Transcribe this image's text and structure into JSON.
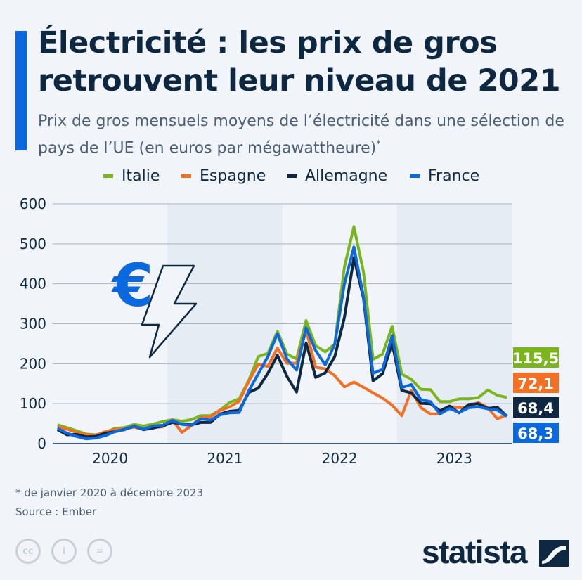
{
  "title": "Électricité : les prix de gros retrouvent leur niveau de 2021",
  "subtitle": "Prix de gros mensuels moyens de l’électricité dans une sélection de pays de l’UE (en euros par mégawattheure)",
  "subtitle_mark": "*",
  "footnote": "* de janvier 2020 à décembre 2023",
  "source": "Source : Ember",
  "brand": "statista",
  "license_icons": [
    "cc-icon",
    "by-icon",
    "nd-icon"
  ],
  "illustration_icons": [
    "euro-icon",
    "lightning-icon"
  ],
  "chart_data": {
    "type": "line",
    "title": "",
    "xlabel": "",
    "ylabel": "",
    "ylim": [
      0,
      600
    ],
    "yticks": [
      "0",
      "100",
      "200",
      "300",
      "400",
      "500",
      "600"
    ],
    "xtick_labels": [
      "2020",
      "2021",
      "2022",
      "2023"
    ],
    "x_start": "2020-01",
    "x_end": "2023-12",
    "x_frequency": "monthly",
    "grid": true,
    "legend_position": "top",
    "shaded_years": [
      "2021",
      "2023"
    ],
    "series": [
      {
        "name": "Italie",
        "color": "#7ab51d",
        "end_label": "115,5",
        "values": [
          47,
          40,
          32,
          24,
          22,
          28,
          38,
          40,
          48,
          44,
          49,
          55,
          60,
          56,
          60,
          70,
          70,
          84,
          103,
          112,
          158,
          218,
          226,
          281,
          224,
          212,
          308,
          245,
          230,
          249,
          441,
          543,
          430,
          211,
          224,
          294,
          174,
          161,
          136,
          135,
          105,
          105,
          112,
          112,
          115,
          134,
          121,
          115.5
        ]
      },
      {
        "name": "Espagne",
        "color": "#f26f23",
        "end_label": "72,1",
        "values": [
          41,
          36,
          28,
          22,
          21,
          30,
          35,
          37,
          41,
          36,
          41,
          42,
          60,
          28,
          45,
          65,
          67,
          83,
          92,
          106,
          156,
          199,
          193,
          239,
          201,
          201,
          284,
          191,
          187,
          170,
          142,
          154,
          141,
          127,
          114,
          96,
          70,
          133,
          90,
          74,
          74,
          93,
          90,
          91,
          103,
          90,
          62,
          72.1
        ]
      },
      {
        "name": "Allemagne",
        "color": "#0e2841",
        "end_label": "68,4",
        "values": [
          35,
          22,
          23,
          17,
          18,
          26,
          30,
          35,
          44,
          35,
          39,
          44,
          53,
          49,
          47,
          53,
          53,
          74,
          81,
          83,
          128,
          139,
          176,
          221,
          168,
          129,
          252,
          166,
          177,
          218,
          315,
          465,
          364,
          157,
          175,
          252,
          133,
          127,
          101,
          100,
          82,
          94,
          77,
          98,
          100,
          88,
          91,
          68.4
        ]
      },
      {
        "name": "France",
        "color": "#0b68dd",
        "end_label": "68,3",
        "values": [
          38,
          26,
          18,
          12,
          14,
          20,
          30,
          36,
          44,
          36,
          44,
          46,
          58,
          48,
          46,
          62,
          59,
          72,
          77,
          78,
          132,
          175,
          218,
          275,
          212,
          184,
          290,
          233,
          197,
          249,
          399,
          492,
          368,
          176,
          186,
          271,
          140,
          148,
          110,
          105,
          74,
          88,
          78,
          90,
          92,
          87,
          84,
          68.3
        ]
      }
    ]
  }
}
